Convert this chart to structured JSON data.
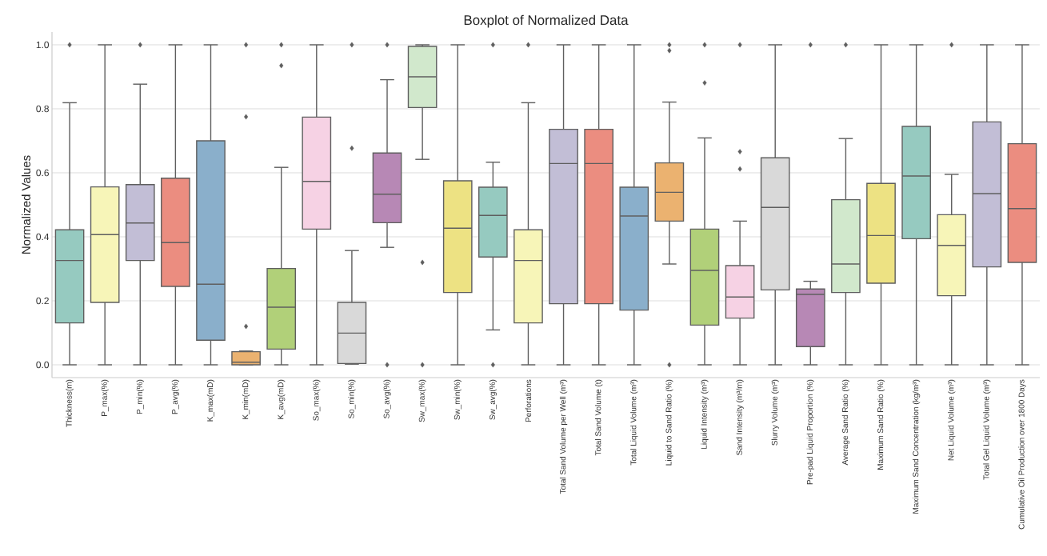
{
  "chart_data": {
    "type": "box",
    "title": "Boxplot of Normalized Data",
    "ylabel": "Normalized Values",
    "categories": [
      "Thickness(m)",
      "P_max(%)",
      "P_min(%)",
      "P_avg(%)",
      "K_max(mD)",
      "K_min(mD)",
      "K_avg(mD)",
      "So_max(%)",
      "So_min(%)",
      "So_avg(%)",
      "Sw_max(%)",
      "Sw_min(%)",
      "Sw_avg(%)",
      "Perforations",
      "Total Sand Volume per Well (m³)",
      "Total Sand Volume (t)",
      "Total Liquid Volume (m³)",
      "Liquid to Sand Ratio (%)",
      "Liquid Intensity (m³)",
      "Sand Intensity (m³/m)",
      "Slurry Volume (m³)",
      "Pre-pad Liquid Proportion (%)",
      "Average Sand Ratio (%)",
      "Maximum Sand Ratio (%)",
      "Maximum Sand Concentration (kg/m³)",
      "Net Liquid Volume (m³)",
      "Total Gel Liquid Volume (m³)",
      "Cumulative Oil Production over 1800 Days"
    ],
    "colors": [
      "#96cac0",
      "#f7f5b8",
      "#c2bed6",
      "#eb8d80",
      "#8aafcb",
      "#ebb270",
      "#b1d079",
      "#f6d2e4",
      "#d9d9d9",
      "#b788b5",
      "#d1e8cc",
      "#ede283",
      "#96cac0",
      "#f7f5b8",
      "#c2bed6",
      "#eb8d80",
      "#8aafcb",
      "#ebb270",
      "#b1d079",
      "#f6d2e4",
      "#d9d9d9",
      "#b788b5",
      "#d1e8cc",
      "#ede283",
      "#96cac0",
      "#f7f5b8",
      "#c2bed6",
      "#eb8d80"
    ],
    "boxes": [
      {
        "low": 0,
        "q1": 0.131,
        "median": 0.326,
        "q3": 0.422,
        "high": 0.819,
        "outliers": [
          1.0
        ]
      },
      {
        "low": 0,
        "q1": 0.195,
        "median": 0.407,
        "q3": 0.556,
        "high": 1.0
      },
      {
        "low": 0,
        "q1": 0.326,
        "median": 0.443,
        "q3": 0.563,
        "high": 0.877,
        "outliers": [
          1.0
        ]
      },
      {
        "low": 0,
        "q1": 0.245,
        "median": 0.382,
        "q3": 0.583,
        "high": 1.0
      },
      {
        "low": 0,
        "q1": 0.077,
        "median": 0.252,
        "q3": 0.7,
        "high": 1.0
      },
      {
        "low": 0,
        "q1": 0,
        "median": 0.008,
        "q3": 0.041,
        "high": 0.043,
        "outliers": [
          0.12,
          0.775,
          1.0
        ]
      },
      {
        "low": 0,
        "q1": 0.049,
        "median": 0.18,
        "q3": 0.301,
        "high": 0.617,
        "outliers": [
          0.935,
          1.0
        ]
      },
      {
        "low": 0,
        "q1": 0.424,
        "median": 0.573,
        "q3": 0.774,
        "high": 1.0
      },
      {
        "low": 0.002,
        "q1": 0.004,
        "median": 0.099,
        "q3": 0.195,
        "high": 0.357,
        "outliers": [
          0.677,
          1.0
        ]
      },
      {
        "low": 0.367,
        "q1": 0.444,
        "median": 0.533,
        "q3": 0.662,
        "high": 0.891,
        "outliers": [
          0,
          1.0
        ]
      },
      {
        "low": 0.642,
        "q1": 0.804,
        "median": 0.9,
        "q3": 0.995,
        "high": 1.0,
        "outliers": [
          0,
          0.32
        ]
      },
      {
        "low": 0,
        "q1": 0.226,
        "median": 0.427,
        "q3": 0.575,
        "high": 1.0
      },
      {
        "low": 0.109,
        "q1": 0.337,
        "median": 0.467,
        "q3": 0.555,
        "high": 0.633,
        "outliers": [
          0,
          1.0
        ]
      },
      {
        "low": 0,
        "q1": 0.131,
        "median": 0.326,
        "q3": 0.422,
        "high": 0.819,
        "outliers": [
          1.0
        ]
      },
      {
        "low": 0,
        "q1": 0.191,
        "median": 0.629,
        "q3": 0.736,
        "high": 1.0
      },
      {
        "low": 0,
        "q1": 0.191,
        "median": 0.629,
        "q3": 0.736,
        "high": 1.0
      },
      {
        "low": 0,
        "q1": 0.171,
        "median": 0.465,
        "q3": 0.555,
        "high": 1.0
      },
      {
        "low": 0.315,
        "q1": 0.449,
        "median": 0.539,
        "q3": 0.631,
        "high": 0.821,
        "outliers": [
          0,
          0.982,
          1.0
        ]
      },
      {
        "low": 0,
        "q1": 0.124,
        "median": 0.295,
        "q3": 0.424,
        "high": 0.709,
        "outliers": [
          0.881,
          1.0
        ]
      },
      {
        "low": 0,
        "q1": 0.146,
        "median": 0.212,
        "q3": 0.31,
        "high": 0.449,
        "outliers": [
          0.612,
          0.666,
          1.0
        ]
      },
      {
        "low": 0,
        "q1": 0.234,
        "median": 0.492,
        "q3": 0.647,
        "high": 1.0
      },
      {
        "low": 0,
        "q1": 0.057,
        "median": 0.22,
        "q3": 0.237,
        "high": 0.261,
        "outliers": [
          1.0
        ]
      },
      {
        "low": 0,
        "q1": 0.226,
        "median": 0.315,
        "q3": 0.516,
        "high": 0.707,
        "outliers": [
          1.0
        ]
      },
      {
        "low": 0,
        "q1": 0.255,
        "median": 0.404,
        "q3": 0.567,
        "high": 1.0
      },
      {
        "low": 0,
        "q1": 0.394,
        "median": 0.59,
        "q3": 0.745,
        "high": 1.0
      },
      {
        "low": 0,
        "q1": 0.216,
        "median": 0.373,
        "q3": 0.469,
        "high": 0.595,
        "outliers": [
          1.0
        ]
      },
      {
        "low": 0,
        "q1": 0.306,
        "median": 0.535,
        "q3": 0.759,
        "high": 1.0
      },
      {
        "low": 0,
        "q1": 0.32,
        "median": 0.488,
        "q3": 0.691,
        "high": 1.0
      }
    ],
    "ylim": [
      -0.04,
      1.04
    ],
    "yticks": [
      {
        "value": 0,
        "label": "0.0"
      },
      {
        "value": 0.2,
        "label": "0.2"
      },
      {
        "value": 0.4,
        "label": "0.4"
      },
      {
        "value": 0.6,
        "label": "0.6"
      },
      {
        "value": 0.8,
        "label": "0.8"
      },
      {
        "value": 1.0,
        "label": "1.0"
      }
    ],
    "grid": "y"
  }
}
